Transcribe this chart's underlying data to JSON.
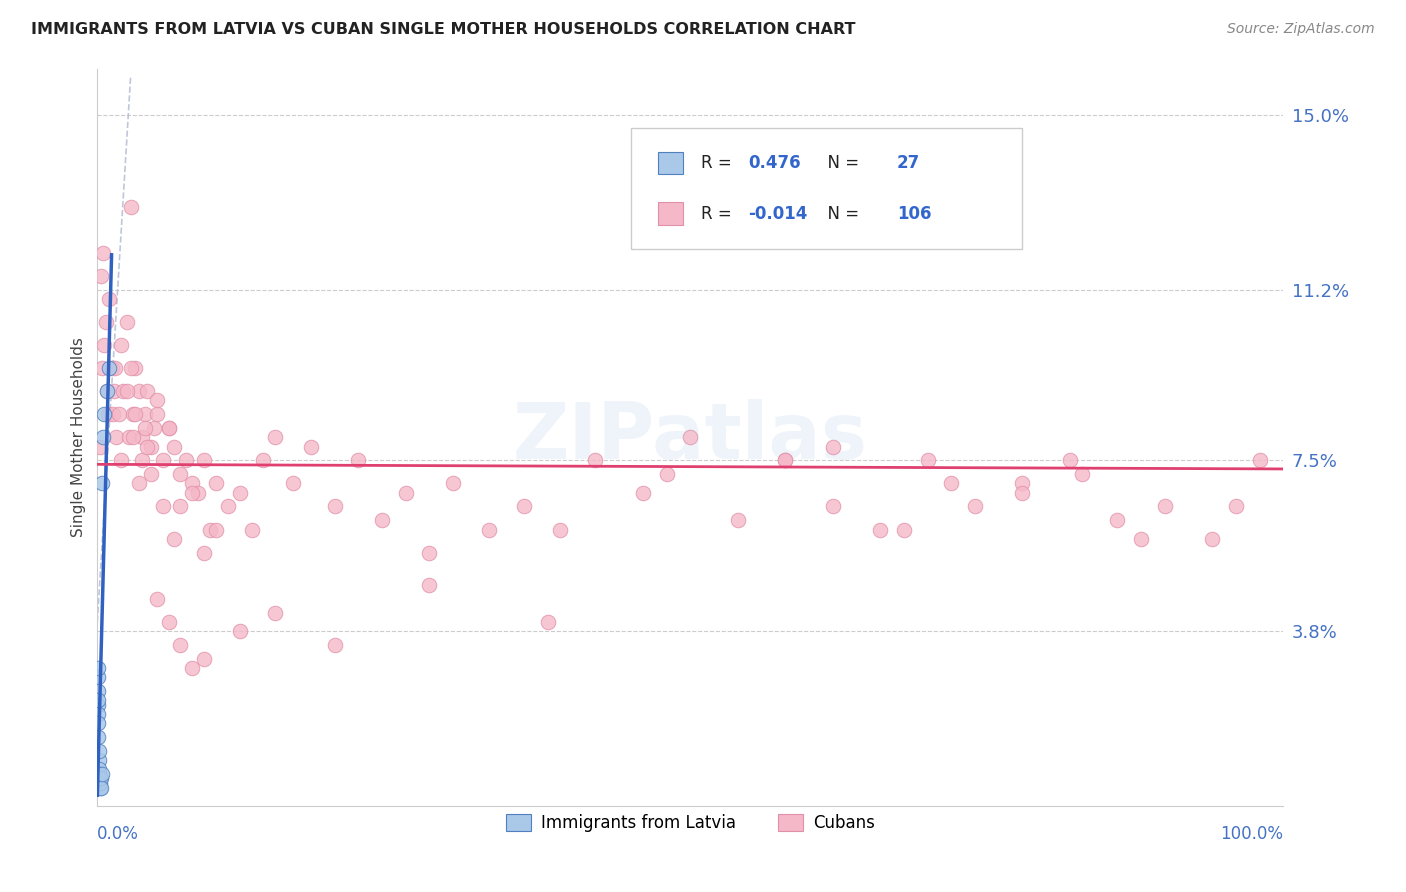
{
  "title": "IMMIGRANTS FROM LATVIA VS CUBAN SINGLE MOTHER HOUSEHOLDS CORRELATION CHART",
  "source": "Source: ZipAtlas.com",
  "ylabel": "Single Mother Households",
  "yticks": [
    0.038,
    0.075,
    0.112,
    0.15
  ],
  "ytick_labels": [
    "3.8%",
    "7.5%",
    "11.2%",
    "15.0%"
  ],
  "xmin": 0.0,
  "xmax": 1.0,
  "ymin": 0.0,
  "ymax": 0.16,
  "color_blue": "#aac8e8",
  "color_pink": "#f5b8c8",
  "trendline_blue": "#3060c0",
  "trendline_pink": "#e04070",
  "dash_color": "#b0b8d0",
  "watermark": "ZIPatlas",
  "blue_x": [
    0.0002,
    0.0003,
    0.0004,
    0.0005,
    0.0006,
    0.0007,
    0.0008,
    0.0009,
    0.001,
    0.0011,
    0.0012,
    0.0013,
    0.0014,
    0.0015,
    0.0016,
    0.0018,
    0.002,
    0.0022,
    0.0025,
    0.0028,
    0.003,
    0.0035,
    0.004,
    0.005,
    0.006,
    0.008,
    0.01
  ],
  "blue_y": [
    0.028,
    0.03,
    0.022,
    0.025,
    0.02,
    0.023,
    0.018,
    0.015,
    0.01,
    0.012,
    0.008,
    0.006,
    0.007,
    0.005,
    0.006,
    0.005,
    0.004,
    0.005,
    0.006,
    0.006,
    0.004,
    0.007,
    0.07,
    0.08,
    0.085,
    0.09,
    0.095
  ],
  "pink_x": [
    0.002,
    0.003,
    0.004,
    0.005,
    0.006,
    0.007,
    0.008,
    0.009,
    0.01,
    0.012,
    0.013,
    0.014,
    0.015,
    0.016,
    0.018,
    0.02,
    0.022,
    0.025,
    0.027,
    0.028,
    0.03,
    0.032,
    0.035,
    0.038,
    0.04,
    0.042,
    0.045,
    0.048,
    0.05,
    0.055,
    0.06,
    0.065,
    0.07,
    0.075,
    0.08,
    0.085,
    0.09,
    0.095,
    0.1,
    0.11,
    0.12,
    0.13,
    0.14,
    0.15,
    0.165,
    0.18,
    0.2,
    0.22,
    0.24,
    0.26,
    0.28,
    0.3,
    0.33,
    0.36,
    0.39,
    0.42,
    0.46,
    0.5,
    0.54,
    0.58,
    0.62,
    0.66,
    0.7,
    0.74,
    0.78,
    0.82,
    0.86,
    0.9,
    0.94,
    0.98,
    0.02,
    0.025,
    0.028,
    0.03,
    0.032,
    0.035,
    0.038,
    0.04,
    0.042,
    0.045,
    0.05,
    0.055,
    0.06,
    0.065,
    0.07,
    0.08,
    0.09,
    0.1,
    0.12,
    0.15,
    0.2,
    0.28,
    0.38,
    0.48,
    0.58,
    0.68,
    0.78,
    0.88,
    0.96,
    0.83,
    0.72,
    0.62,
    0.05,
    0.06,
    0.07,
    0.08,
    0.09
  ],
  "pink_y": [
    0.078,
    0.115,
    0.095,
    0.12,
    0.1,
    0.105,
    0.09,
    0.085,
    0.11,
    0.095,
    0.085,
    0.09,
    0.095,
    0.08,
    0.085,
    0.1,
    0.09,
    0.105,
    0.08,
    0.13,
    0.085,
    0.095,
    0.09,
    0.08,
    0.085,
    0.09,
    0.078,
    0.082,
    0.085,
    0.075,
    0.082,
    0.078,
    0.072,
    0.075,
    0.07,
    0.068,
    0.075,
    0.06,
    0.07,
    0.065,
    0.068,
    0.06,
    0.075,
    0.08,
    0.07,
    0.078,
    0.065,
    0.075,
    0.062,
    0.068,
    0.055,
    0.07,
    0.06,
    0.065,
    0.06,
    0.075,
    0.068,
    0.08,
    0.062,
    0.075,
    0.065,
    0.06,
    0.075,
    0.065,
    0.07,
    0.075,
    0.062,
    0.065,
    0.058,
    0.075,
    0.075,
    0.09,
    0.095,
    0.08,
    0.085,
    0.07,
    0.075,
    0.082,
    0.078,
    0.072,
    0.088,
    0.065,
    0.082,
    0.058,
    0.065,
    0.068,
    0.055,
    0.06,
    0.038,
    0.042,
    0.035,
    0.048,
    0.04,
    0.072,
    0.075,
    0.06,
    0.068,
    0.058,
    0.065,
    0.072,
    0.07,
    0.078,
    0.045,
    0.04,
    0.035,
    0.03,
    0.032
  ]
}
